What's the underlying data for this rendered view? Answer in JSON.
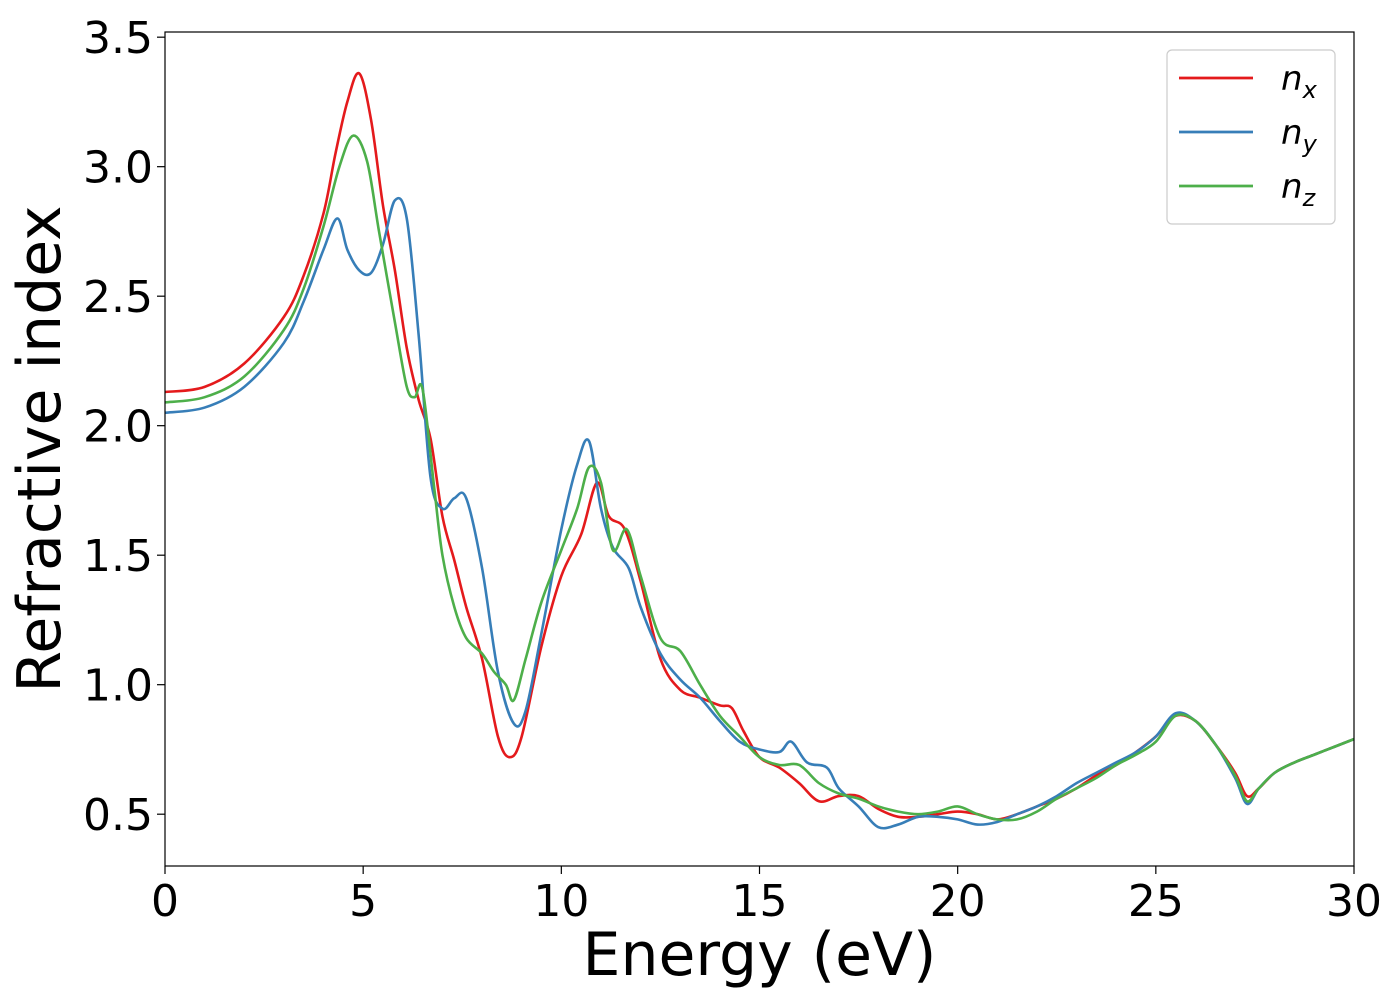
{
  "chart_data": {
    "type": "line",
    "xlabel": "Energy (eV)",
    "ylabel": "Refractive index",
    "xlim": [
      0,
      30
    ],
    "ylim": [
      0.3,
      3.52
    ],
    "xticks": [
      0,
      5,
      10,
      15,
      20,
      25,
      30
    ],
    "xtick_labels": [
      "0",
      "5",
      "10",
      "15",
      "20",
      "25",
      "30"
    ],
    "yticks": [
      0.5,
      1.0,
      1.5,
      2.0,
      2.5,
      3.0,
      3.5
    ],
    "ytick_labels": [
      "0.5",
      "1.0",
      "1.5",
      "2.0",
      "2.5",
      "3.0",
      "3.5"
    ],
    "grid": false,
    "legend_position": "top-right",
    "series": [
      {
        "name": "n_x",
        "legend_base": "n",
        "legend_sub": "x",
        "color": "#e41a1c",
        "x": [
          0,
          1,
          2,
          3,
          3.5,
          4,
          4.3,
          4.6,
          4.9,
          5.2,
          5.5,
          5.8,
          6.1,
          6.4,
          6.7,
          7.0,
          7.3,
          7.6,
          8.0,
          8.4,
          8.7,
          9.0,
          9.5,
          10.0,
          10.5,
          10.9,
          11.2,
          11.6,
          12.0,
          12.5,
          13.0,
          13.5,
          14.0,
          14.3,
          14.6,
          15.0,
          15.5,
          16.0,
          16.5,
          17.0,
          17.5,
          18.0,
          18.5,
          19.0,
          19.5,
          20.0,
          20.5,
          21.0,
          21.5,
          22.0,
          22.5,
          23.0,
          23.5,
          24.0,
          24.5,
          25.0,
          25.5,
          26.0,
          26.5,
          27.0,
          27.3,
          27.6,
          28.0,
          28.5,
          29.0,
          29.5,
          30.0
        ],
        "y": [
          2.13,
          2.15,
          2.24,
          2.42,
          2.58,
          2.82,
          3.05,
          3.25,
          3.36,
          3.18,
          2.85,
          2.6,
          2.3,
          2.1,
          1.95,
          1.65,
          1.48,
          1.3,
          1.1,
          0.8,
          0.72,
          0.8,
          1.15,
          1.42,
          1.58,
          1.78,
          1.65,
          1.6,
          1.4,
          1.1,
          0.98,
          0.95,
          0.92,
          0.91,
          0.82,
          0.72,
          0.68,
          0.62,
          0.55,
          0.57,
          0.57,
          0.52,
          0.49,
          0.49,
          0.5,
          0.51,
          0.5,
          0.48,
          0.5,
          0.53,
          0.56,
          0.6,
          0.65,
          0.69,
          0.74,
          0.8,
          0.88,
          0.86,
          0.77,
          0.66,
          0.57,
          0.6,
          0.66,
          0.7,
          0.73,
          0.76,
          0.79
        ]
      },
      {
        "name": "n_y",
        "legend_base": "n",
        "legend_sub": "y",
        "color": "#377eb8",
        "x": [
          0,
          1,
          2,
          3,
          3.5,
          4.0,
          4.35,
          4.6,
          4.9,
          5.2,
          5.5,
          5.8,
          6.1,
          6.4,
          6.7,
          7.0,
          7.3,
          7.6,
          8.0,
          8.4,
          8.8,
          9.1,
          9.5,
          10.0,
          10.4,
          10.7,
          11.0,
          11.3,
          11.7,
          12.0,
          12.5,
          13.0,
          13.5,
          14.0,
          14.5,
          15.0,
          15.5,
          15.8,
          16.2,
          16.7,
          17.0,
          17.5,
          18.0,
          18.5,
          19.0,
          19.5,
          20.0,
          20.5,
          21.0,
          21.5,
          22.0,
          22.5,
          23.0,
          23.5,
          24.0,
          24.5,
          25.0,
          25.5,
          26.0,
          26.5,
          27.0,
          27.3,
          27.6,
          28.0,
          28.5,
          29.0,
          29.5,
          30.0
        ],
        "y": [
          2.05,
          2.07,
          2.15,
          2.32,
          2.48,
          2.68,
          2.8,
          2.68,
          2.6,
          2.59,
          2.7,
          2.87,
          2.8,
          2.35,
          1.8,
          1.68,
          1.72,
          1.72,
          1.45,
          1.05,
          0.85,
          0.9,
          1.2,
          1.6,
          1.85,
          1.94,
          1.68,
          1.53,
          1.45,
          1.3,
          1.12,
          1.02,
          0.95,
          0.86,
          0.78,
          0.75,
          0.74,
          0.78,
          0.7,
          0.68,
          0.6,
          0.53,
          0.45,
          0.46,
          0.49,
          0.49,
          0.48,
          0.46,
          0.47,
          0.5,
          0.53,
          0.57,
          0.62,
          0.66,
          0.7,
          0.74,
          0.8,
          0.89,
          0.86,
          0.77,
          0.64,
          0.54,
          0.6,
          0.66,
          0.7,
          0.73,
          0.76,
          0.79
        ]
      },
      {
        "name": "n_z",
        "legend_base": "n",
        "legend_sub": "z",
        "color": "#4daf4a",
        "x": [
          0,
          1,
          2,
          3,
          3.5,
          4.0,
          4.4,
          4.75,
          5.1,
          5.4,
          5.8,
          6.1,
          6.3,
          6.5,
          6.8,
          7.0,
          7.3,
          7.6,
          8.0,
          8.3,
          8.6,
          8.8,
          9.1,
          9.5,
          10.0,
          10.4,
          10.7,
          11.0,
          11.3,
          11.65,
          12.0,
          12.5,
          13.0,
          13.5,
          14.0,
          14.5,
          15.0,
          15.5,
          16.0,
          16.5,
          17.0,
          17.5,
          18.0,
          18.5,
          19.0,
          19.5,
          20.0,
          20.5,
          21.0,
          21.5,
          22.0,
          22.5,
          23.0,
          23.5,
          24.0,
          24.5,
          25.0,
          25.5,
          26.0,
          26.5,
          27.0,
          27.3,
          27.6,
          28.0,
          28.5,
          29.0,
          29.5,
          30.0
        ],
        "y": [
          2.09,
          2.11,
          2.19,
          2.37,
          2.53,
          2.77,
          3.0,
          3.12,
          3.02,
          2.75,
          2.4,
          2.15,
          2.11,
          2.14,
          1.75,
          1.5,
          1.3,
          1.18,
          1.12,
          1.05,
          1.0,
          0.94,
          1.1,
          1.32,
          1.52,
          1.68,
          1.84,
          1.78,
          1.52,
          1.6,
          1.42,
          1.18,
          1.13,
          1.0,
          0.88,
          0.8,
          0.72,
          0.69,
          0.69,
          0.62,
          0.58,
          0.56,
          0.53,
          0.51,
          0.5,
          0.51,
          0.53,
          0.5,
          0.48,
          0.48,
          0.51,
          0.56,
          0.6,
          0.64,
          0.69,
          0.73,
          0.78,
          0.88,
          0.86,
          0.77,
          0.65,
          0.55,
          0.6,
          0.66,
          0.7,
          0.73,
          0.76,
          0.79
        ]
      }
    ]
  }
}
